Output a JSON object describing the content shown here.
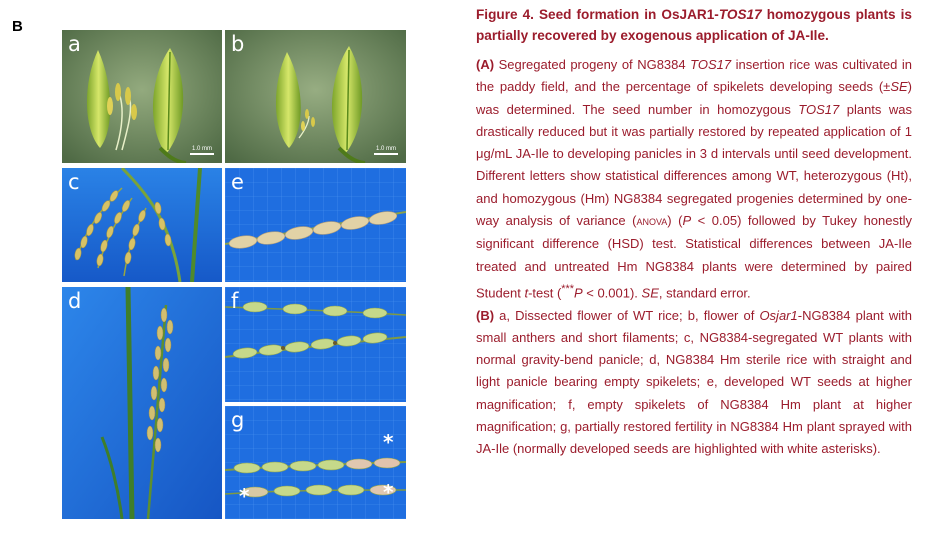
{
  "figure": {
    "panel_letter": "B",
    "photos": {
      "a": {
        "label": "a",
        "scale": "1.0 mm"
      },
      "b": {
        "label": "b",
        "scale": "1.0 mm"
      },
      "c": {
        "label": "c"
      },
      "d": {
        "label": "d"
      },
      "e": {
        "label": "e"
      },
      "f": {
        "label": "f"
      },
      "g": {
        "label": "g",
        "asterisk": "*"
      }
    },
    "colors": {
      "caption": "#9b1c2c",
      "background": "#ffffff",
      "blue_board": "#1f6ee0",
      "green_bg": "#6e8a5a"
    }
  },
  "caption": {
    "title_pre": "Figure 4. Seed formation in OsJAR1-",
    "title_gene": "TOS17",
    "title_post": " homozygous plants is partially recovered by exogenous application of JA-Ile.",
    "A_label": "(A)",
    "A_1": " Segregated progeny of NG8384 ",
    "A_gene1": "TOS17",
    "A_2": " insertion rice was cultivated in the paddy field, and the percentage of spikelets developing seeds (±",
    "A_se1": "SE",
    "A_3": ") was determined. The seed number in homozygous ",
    "A_gene2": "TOS17",
    "A_4": " plants was drastically reduced but it was partially restored by repeated application of 1 μg/mL JA-Ile to developing panicles in 3 d intervals until seed development. Different letters show statistical differences among WT, heterozygous (Ht), and homozygous (Hm) NG8384 segregated progenies determined by one-way analysis of variance (",
    "A_anova": "ANOVA",
    "A_5": ") (",
    "A_p1": "P",
    "A_6": " < 0.05) followed by Tukey honestly significant difference (HSD) test. Statistical differences between JA-Ile treated and untreated Hm NG8384 plants were determined by paired Student ",
    "A_t": "t",
    "A_7": "-test (",
    "A_stars": "***",
    "A_p2": "P",
    "A_8": " < 0.001). ",
    "A_se2": "SE",
    "A_9": ", standard error.",
    "B_label": "(B)",
    "B_1": " a, Dissected flower of WT rice; b, flower of ",
    "B_gene": "Osjar1",
    "B_2": "-NG8384 plant with small anthers and short filaments; c, NG8384-segregated WT plants with normal gravity-bend panicle; d, NG8384 Hm sterile rice with straight and light panicle bearing empty spikelets; e, developed WT seeds at higher magnification; f, empty spikelets of NG8384 Hm plant at higher magnification; g, partially restored fertility in NG8384 Hm plant sprayed with JA-Ile (normally developed seeds are highlighted with white asterisks)."
  }
}
